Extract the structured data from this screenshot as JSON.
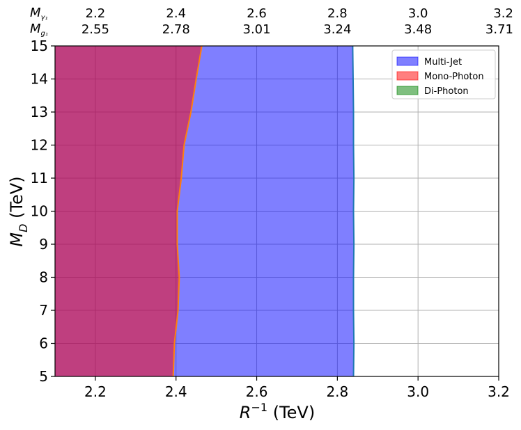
{
  "chart_data": {
    "type": "area",
    "xlabel": "R⁻¹ (TeV)",
    "ylabel": "M_D (TeV)",
    "xlim": [
      2.1,
      3.2
    ],
    "ylim": [
      5,
      15
    ],
    "xticks": [
      2.2,
      2.4,
      2.6,
      2.8,
      3.0,
      3.2
    ],
    "yticks": [
      5,
      6,
      7,
      8,
      9,
      10,
      11,
      12,
      13,
      14,
      15
    ],
    "xtick_labels": [
      "2.2",
      "2.4",
      "2.6",
      "2.8",
      "3.0",
      "3.2"
    ],
    "ytick_labels": [
      "5",
      "6",
      "7",
      "8",
      "9",
      "10",
      "11",
      "12",
      "13",
      "14",
      "15"
    ],
    "grid": true,
    "legend_position": "top-right",
    "top_axes": [
      {
        "label": "M",
        "subscript": "γ₁",
        "values": [
          "2.2",
          "2.4",
          "2.6",
          "2.8",
          "3.0",
          "3.2"
        ]
      },
      {
        "label": "M",
        "subscript": "g₁",
        "values": [
          "2.55",
          "2.78",
          "3.01",
          "3.24",
          "3.48",
          "3.71"
        ]
      }
    ],
    "series": [
      {
        "name": "Multi-Jet",
        "fill": "#0000ff",
        "line": "#1f77b4",
        "boundary": [
          [
            2.84,
            5
          ],
          [
            2.841,
            6
          ],
          [
            2.84,
            7
          ],
          [
            2.84,
            8
          ],
          [
            2.841,
            9
          ],
          [
            2.84,
            10
          ],
          [
            2.841,
            11
          ],
          [
            2.84,
            12
          ],
          [
            2.84,
            13
          ],
          [
            2.839,
            14
          ],
          [
            2.838,
            15
          ]
        ]
      },
      {
        "name": "Mono-Photon",
        "fill": "#ff0000",
        "line": "#ff7f0e",
        "boundary": [
          [
            2.393,
            5
          ],
          [
            2.396,
            6
          ],
          [
            2.405,
            7
          ],
          [
            2.408,
            8
          ],
          [
            2.403,
            9
          ],
          [
            2.403,
            10
          ],
          [
            2.413,
            11
          ],
          [
            2.42,
            12
          ],
          [
            2.437,
            13
          ],
          [
            2.45,
            14
          ],
          [
            2.464,
            15
          ]
        ]
      },
      {
        "name": "Di-Photon",
        "fill": "#008000",
        "line": "#2ca02c",
        "boundary": []
      }
    ]
  }
}
